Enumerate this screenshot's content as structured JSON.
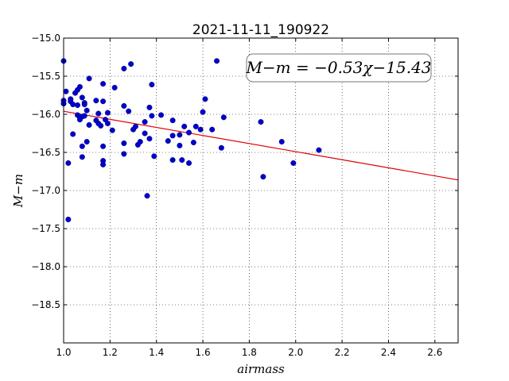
{
  "chart_data": {
    "type": "scatter",
    "title": "2021-11-11_190922",
    "xlabel": "airmass",
    "ylabel": "M−m",
    "xlim": [
      1.0,
      2.7
    ],
    "ylim": [
      -19.0,
      -15.0
    ],
    "y_inverted": true,
    "grid": true,
    "x_ticks": [
      "1.0",
      "1.2",
      "1.4",
      "1.6",
      "1.8",
      "2.0",
      "2.2",
      "2.4",
      "2.6"
    ],
    "y_ticks": [
      "−15.0",
      "−15.5",
      "−16.0",
      "−16.5",
      "−17.0",
      "−17.5",
      "−18.0",
      "−18.5"
    ],
    "annotation": "M−m = −0.53χ−15.43",
    "colors": {
      "points": "#0000cc",
      "fit_line": "#dd0000"
    },
    "fit": {
      "slope": -0.53,
      "intercept": -15.43
    },
    "points": [
      {
        "x": 1.0,
        "y": -15.3
      },
      {
        "x": 1.0,
        "y": -15.82
      },
      {
        "x": 1.0,
        "y": -15.86
      },
      {
        "x": 1.01,
        "y": -15.7
      },
      {
        "x": 1.02,
        "y": -16.64
      },
      {
        "x": 1.02,
        "y": -17.38
      },
      {
        "x": 1.03,
        "y": -15.8
      },
      {
        "x": 1.03,
        "y": -15.83
      },
      {
        "x": 1.04,
        "y": -15.87
      },
      {
        "x": 1.04,
        "y": -16.26
      },
      {
        "x": 1.05,
        "y": -15.72
      },
      {
        "x": 1.06,
        "y": -15.68
      },
      {
        "x": 1.06,
        "y": -15.88
      },
      {
        "x": 1.06,
        "y": -16.01
      },
      {
        "x": 1.07,
        "y": -15.64
      },
      {
        "x": 1.07,
        "y": -16.04
      },
      {
        "x": 1.07,
        "y": -16.07
      },
      {
        "x": 1.08,
        "y": -15.78
      },
      {
        "x": 1.08,
        "y": -16.03
      },
      {
        "x": 1.08,
        "y": -16.42
      },
      {
        "x": 1.08,
        "y": -16.56
      },
      {
        "x": 1.09,
        "y": -15.85
      },
      {
        "x": 1.09,
        "y": -15.87
      },
      {
        "x": 1.09,
        "y": -16.02
      },
      {
        "x": 1.1,
        "y": -15.95
      },
      {
        "x": 1.1,
        "y": -16.36
      },
      {
        "x": 1.11,
        "y": -15.53
      },
      {
        "x": 1.11,
        "y": -16.14
      },
      {
        "x": 1.14,
        "y": -15.82
      },
      {
        "x": 1.14,
        "y": -16.08
      },
      {
        "x": 1.15,
        "y": -15.99
      },
      {
        "x": 1.15,
        "y": -16.12
      },
      {
        "x": 1.16,
        "y": -16.15
      },
      {
        "x": 1.17,
        "y": -15.6
      },
      {
        "x": 1.17,
        "y": -15.83
      },
      {
        "x": 1.17,
        "y": -16.42
      },
      {
        "x": 1.17,
        "y": -16.61
      },
      {
        "x": 1.17,
        "y": -16.66
      },
      {
        "x": 1.18,
        "y": -16.07
      },
      {
        "x": 1.19,
        "y": -15.98
      },
      {
        "x": 1.19,
        "y": -16.12
      },
      {
        "x": 1.21,
        "y": -16.21
      },
      {
        "x": 1.22,
        "y": -15.65
      },
      {
        "x": 1.26,
        "y": -15.4
      },
      {
        "x": 1.26,
        "y": -15.89
      },
      {
        "x": 1.26,
        "y": -16.38
      },
      {
        "x": 1.26,
        "y": -16.52
      },
      {
        "x": 1.28,
        "y": -15.96
      },
      {
        "x": 1.29,
        "y": -15.34
      },
      {
        "x": 1.3,
        "y": -16.2
      },
      {
        "x": 1.31,
        "y": -16.16
      },
      {
        "x": 1.32,
        "y": -16.4
      },
      {
        "x": 1.33,
        "y": -16.36
      },
      {
        "x": 1.35,
        "y": -16.1
      },
      {
        "x": 1.35,
        "y": -16.25
      },
      {
        "x": 1.36,
        "y": -17.07
      },
      {
        "x": 1.37,
        "y": -15.91
      },
      {
        "x": 1.37,
        "y": -16.32
      },
      {
        "x": 1.38,
        "y": -15.61
      },
      {
        "x": 1.38,
        "y": -16.02
      },
      {
        "x": 1.39,
        "y": -16.55
      },
      {
        "x": 1.42,
        "y": -16.01
      },
      {
        "x": 1.45,
        "y": -16.35
      },
      {
        "x": 1.47,
        "y": -16.08
      },
      {
        "x": 1.47,
        "y": -16.28
      },
      {
        "x": 1.47,
        "y": -16.6
      },
      {
        "x": 1.5,
        "y": -16.27
      },
      {
        "x": 1.5,
        "y": -16.41
      },
      {
        "x": 1.51,
        "y": -16.6
      },
      {
        "x": 1.52,
        "y": -16.16
      },
      {
        "x": 1.54,
        "y": -16.24
      },
      {
        "x": 1.54,
        "y": -16.64
      },
      {
        "x": 1.56,
        "y": -16.37
      },
      {
        "x": 1.57,
        "y": -16.16
      },
      {
        "x": 1.59,
        "y": -16.2
      },
      {
        "x": 1.6,
        "y": -15.97
      },
      {
        "x": 1.61,
        "y": -15.8
      },
      {
        "x": 1.64,
        "y": -16.2
      },
      {
        "x": 1.66,
        "y": -15.3
      },
      {
        "x": 1.68,
        "y": -16.44
      },
      {
        "x": 1.69,
        "y": -16.04
      },
      {
        "x": 1.85,
        "y": -16.1
      },
      {
        "x": 1.86,
        "y": -16.82
      },
      {
        "x": 1.94,
        "y": -16.36
      },
      {
        "x": 1.99,
        "y": -16.64
      },
      {
        "x": 2.1,
        "y": -16.47
      }
    ]
  }
}
